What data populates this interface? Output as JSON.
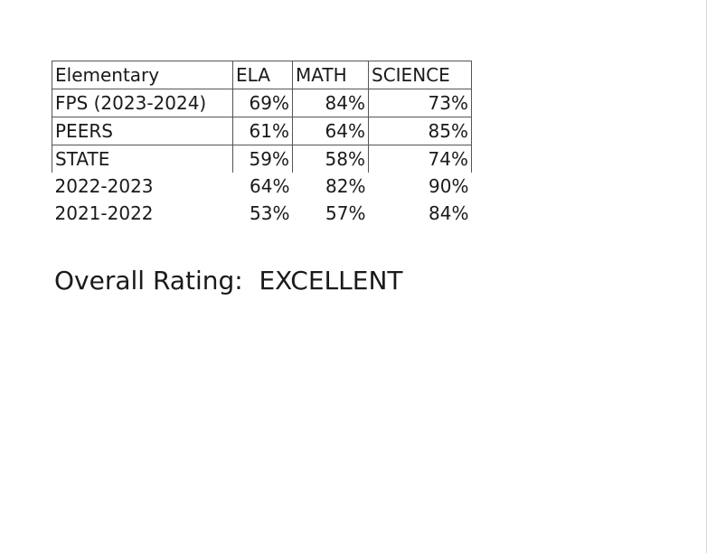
{
  "table": {
    "header": {
      "label": "Elementary",
      "ela": "ELA",
      "math": "MATH",
      "science": "SCIENCE"
    },
    "rows": [
      {
        "label": "FPS (2023-2024)",
        "ela": "69%",
        "math": "84%",
        "science": "73%"
      },
      {
        "label": "PEERS",
        "ela": "61%",
        "math": "64%",
        "science": "85%"
      },
      {
        "label": "STATE",
        "ela": "59%",
        "math": "58%",
        "science": "74%"
      },
      {
        "label": "2022-2023",
        "ela": "64%",
        "math": "82%",
        "science": "90%"
      },
      {
        "label": "2021-2022",
        "ela": "53%",
        "math": "57%",
        "science": "84%"
      }
    ]
  },
  "rating": {
    "text": "Overall Rating:  EXCELLENT"
  }
}
